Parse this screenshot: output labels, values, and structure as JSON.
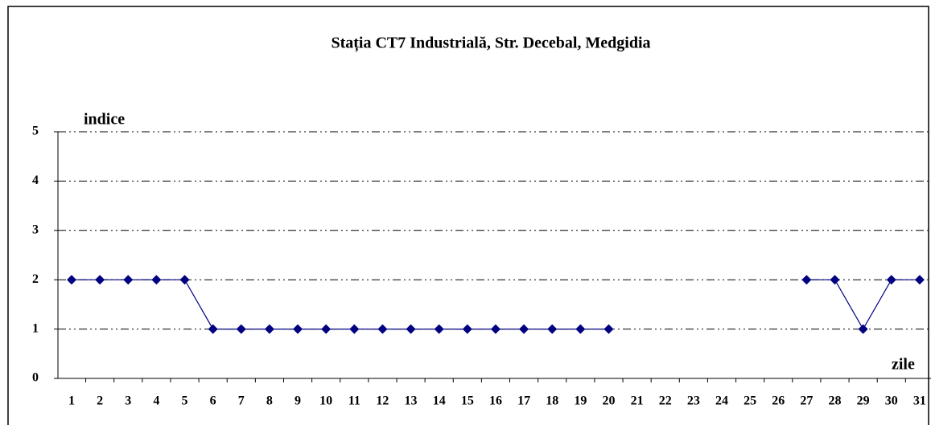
{
  "chart_data": {
    "type": "line",
    "title": "Stația CT7 Industrială,  Str. Decebal, Medgidia",
    "y_label": "indice",
    "x_label": "zile",
    "categories": [
      "1",
      "2",
      "3",
      "4",
      "5",
      "6",
      "7",
      "8",
      "9",
      "10",
      "11",
      "12",
      "13",
      "14",
      "15",
      "16",
      "17",
      "18",
      "19",
      "20",
      "21",
      "22",
      "23",
      "24",
      "25",
      "26",
      "27",
      "28",
      "29",
      "30",
      "31"
    ],
    "values": [
      2,
      2,
      2,
      2,
      2,
      1,
      1,
      1,
      1,
      1,
      1,
      1,
      1,
      1,
      1,
      1,
      1,
      1,
      1,
      1,
      null,
      null,
      null,
      null,
      null,
      null,
      2,
      2,
      1,
      2,
      2
    ],
    "color": "#000080",
    "ylim": [
      0,
      5
    ],
    "yticks": [
      0,
      1,
      2,
      3,
      4,
      5
    ],
    "grid": true
  }
}
